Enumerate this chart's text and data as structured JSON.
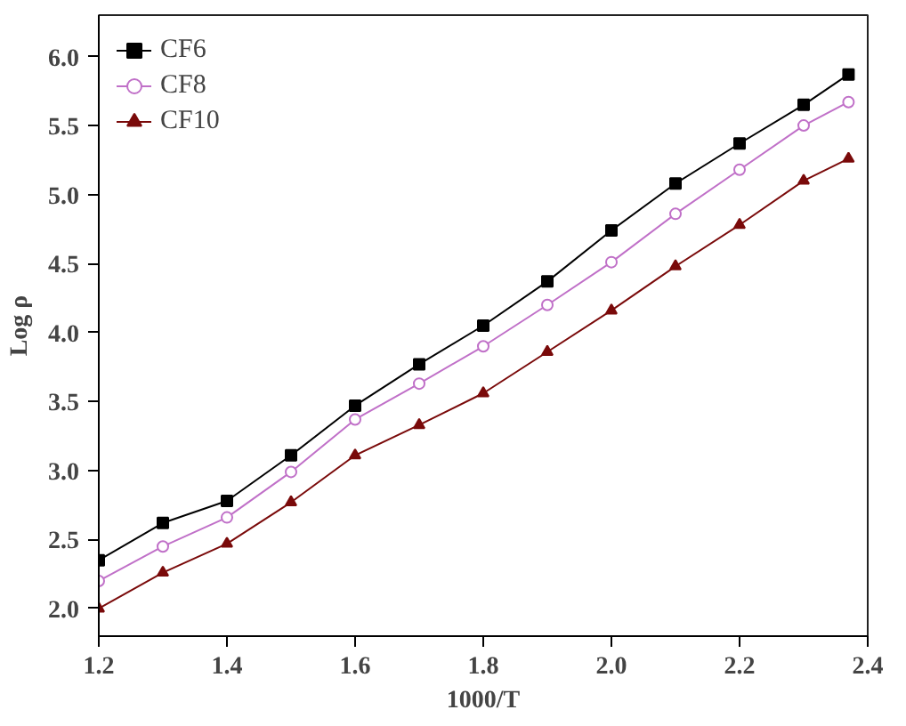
{
  "chart_data": {
    "type": "line",
    "xlabel": "1000/T",
    "ylabel": "Log ρ",
    "x": [
      1.2,
      1.3,
      1.4,
      1.5,
      1.6,
      1.7,
      1.8,
      1.9,
      2.0,
      2.1,
      2.2,
      2.3,
      2.37
    ],
    "series": [
      {
        "name": "CF6",
        "color": "#000000",
        "marker": "square",
        "values": [
          2.35,
          2.62,
          2.78,
          3.11,
          3.47,
          3.77,
          4.05,
          4.37,
          4.74,
          5.08,
          5.37,
          5.65,
          5.87
        ]
      },
      {
        "name": "CF8",
        "color": "#c070c8",
        "marker": "circle",
        "values": [
          2.2,
          2.45,
          2.66,
          2.99,
          3.37,
          3.63,
          3.9,
          4.2,
          4.51,
          4.86,
          5.18,
          5.5,
          5.67
        ]
      },
      {
        "name": "CF10",
        "color": "#7a0a0a",
        "marker": "triangle",
        "values": [
          2.0,
          2.26,
          2.47,
          2.77,
          3.11,
          3.33,
          3.56,
          3.86,
          4.16,
          4.48,
          4.78,
          5.1,
          5.26
        ]
      }
    ],
    "xlim": [
      1.2,
      2.4
    ],
    "xticks": [
      1.2,
      1.4,
      1.6,
      1.8,
      {
        "value": 2,
        "label": "2.0"
      },
      2.2,
      2.4
    ],
    "ylim": [
      1.8,
      6.3
    ],
    "yticks": [
      {
        "value": 2,
        "label": "2.0"
      },
      2.5,
      {
        "value": 3,
        "label": "3.0"
      },
      3.5,
      {
        "value": 4,
        "label": "4.0"
      },
      4.5,
      {
        "value": 5,
        "label": "5.0"
      },
      5.5,
      {
        "value": 6,
        "label": "6.0"
      }
    ],
    "legend": "top left",
    "grid": false
  }
}
